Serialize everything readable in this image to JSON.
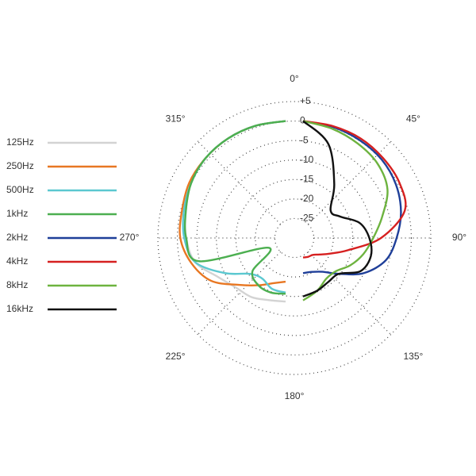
{
  "chart_data": {
    "type": "polar",
    "rlim": [
      -30,
      5
    ],
    "rticks": [
      {
        "value": 5,
        "label": "+5"
      },
      0,
      -5,
      -10,
      -15,
      -20,
      -25
    ],
    "angle_ticks": [
      {
        "value": 0,
        "label": "0°"
      },
      {
        "value": 45,
        "label": "45°"
      },
      {
        "value": 90,
        "label": "90°"
      },
      {
        "value": 135,
        "label": "135°"
      },
      {
        "value": 180,
        "label": "180°"
      },
      {
        "value": 225,
        "label": "225°"
      },
      {
        "value": 270,
        "label": "270°"
      },
      {
        "value": 315,
        "label": "315°"
      }
    ],
    "series": [
      {
        "name": "125Hz",
        "color": "#d3d3d3",
        "theta": [
          180,
          195,
          210,
          225,
          240,
          255,
          270,
          285,
          300,
          315,
          330,
          345,
          360
        ],
        "values": [
          -13.7,
          -13.5,
          -12.5,
          -12,
          -10,
          -6,
          -4.5,
          -3.5,
          -2,
          -1,
          -0.5,
          -0.2,
          0
        ]
      },
      {
        "name": "250Hz",
        "color": "#e87722",
        "theta": [
          180,
          195,
          210,
          225,
          240,
          255,
          270,
          285,
          300,
          315,
          330,
          345,
          360
        ],
        "values": [
          -18.8,
          -18,
          -16,
          -13,
          -8,
          -5,
          -3,
          -2.5,
          -1.5,
          -1,
          -0.5,
          -0.2,
          0
        ]
      },
      {
        "name": "500Hz",
        "color": "#5bc8d0",
        "theta": [
          180,
          195,
          210,
          225,
          240,
          255,
          270,
          285,
          300,
          315,
          330,
          345,
          360
        ],
        "values": [
          -16,
          -16.5,
          -18,
          -17,
          -12,
          -6,
          -4,
          -3,
          -2,
          -1,
          -0.5,
          -0.2,
          0
        ]
      },
      {
        "name": "1kHz",
        "color": "#4caf50",
        "theta": [
          180,
          195,
          210,
          225,
          240,
          255,
          270,
          285,
          300,
          315,
          330,
          345,
          360
        ],
        "values": [
          -15.7,
          -15.5,
          -16,
          -18,
          -25,
          -7,
          -4.5,
          -3.5,
          -2,
          -1,
          -0.5,
          -0.2,
          0
        ]
      },
      {
        "name": "2kHz",
        "color": "#1f3f99",
        "theta": [
          0,
          15,
          30,
          45,
          60,
          75,
          90,
          105,
          120,
          135,
          150,
          165,
          180
        ],
        "values": [
          0,
          -0.5,
          -1,
          -1.5,
          -2.5,
          -4,
          -6,
          -8,
          -12,
          -17,
          -20,
          -21,
          -21
        ]
      },
      {
        "name": "4kHz",
        "color": "#d62020",
        "theta": [
          0,
          15,
          30,
          45,
          60,
          75,
          90,
          105,
          120,
          135,
          150,
          165,
          180
        ],
        "values": [
          0,
          -0.3,
          -0.5,
          -1,
          -1.5,
          -3,
          -10,
          -18,
          -22,
          -24,
          -25,
          -25,
          -25
        ]
      },
      {
        "name": "8kHz",
        "color": "#6db33f",
        "theta": [
          0,
          15,
          30,
          45,
          60,
          75,
          90,
          105,
          120,
          135,
          150,
          165,
          180
        ],
        "values": [
          0,
          -1,
          -2,
          -3,
          -5,
          -9,
          -12,
          -14,
          -16,
          -18,
          -18,
          -16,
          -14
        ]
      },
      {
        "name": "16kHz",
        "color": "#111111",
        "theta": [
          0,
          15,
          30,
          45,
          60,
          75,
          90,
          105,
          120,
          135,
          150,
          165,
          180
        ],
        "values": [
          0,
          -5,
          -14,
          -20,
          -19,
          -15,
          -13,
          -12,
          -13,
          -17,
          -17,
          -16,
          -15
        ]
      }
    ]
  }
}
